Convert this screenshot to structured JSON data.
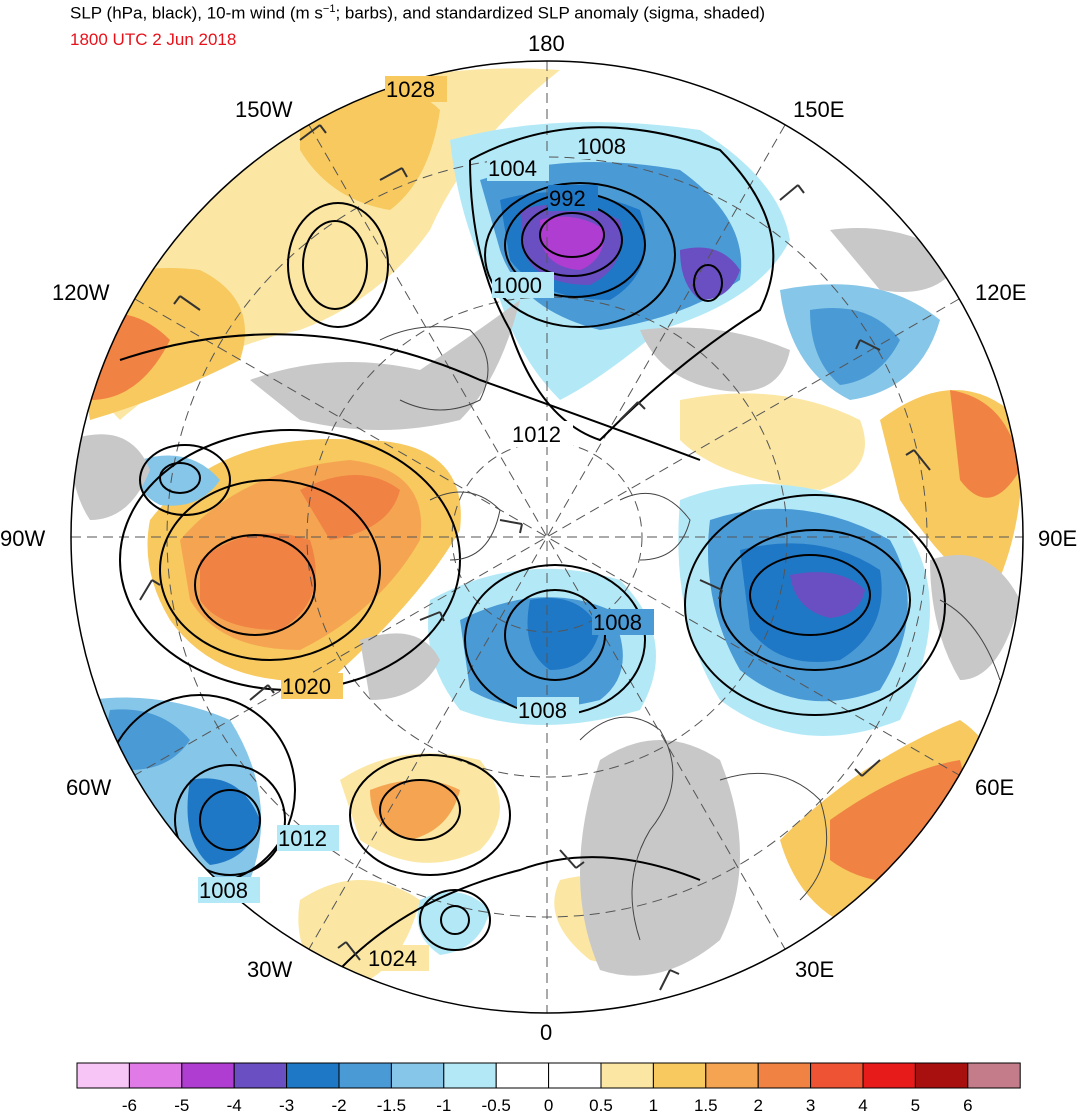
{
  "header": {
    "title_main": "SLP (hPa, black), 10-m wind (m s",
    "title_exp": "−1",
    "title_rest": "; barbs), and standardized SLP anomaly (sigma, shaded)",
    "valid_time": "1800 UTC 2 Jun 2018",
    "valid_time_color": "#e8111a"
  },
  "longitude_labels": [
    "180",
    "150E",
    "120E",
    "90E",
    "60E",
    "30E",
    "0",
    "30W",
    "60W",
    "90W",
    "120W",
    "150W"
  ],
  "contour_labels": [
    "1028",
    "1008",
    "1004",
    "992",
    "1000",
    "1012",
    "1008",
    "1008",
    "1020",
    "1012",
    "1008",
    "1024"
  ],
  "colorbar": {
    "colors": [
      "#f7c6f6",
      "#e07ae6",
      "#b03dd1",
      "#6a4fc2",
      "#1f78c5",
      "#4a9ad6",
      "#86c6e8",
      "#b3e9f7",
      "#ffffff",
      "#ffffff",
      "#fbe7a3",
      "#f7c95e",
      "#f5a552",
      "#f08244",
      "#ee5433",
      "#e81b1b",
      "#a81010",
      "#c47b8a"
    ],
    "tick_labels": [
      "-6",
      "-5",
      "-4",
      "-3",
      "-2",
      "-1.5",
      "-1",
      "-0.5",
      "0",
      "0.5",
      "1",
      "1.5",
      "2",
      "3",
      "4",
      "5",
      "6"
    ]
  },
  "colors": {
    "land_gray": "#c8c8c8",
    "contour": "#000000",
    "barb": "#333333"
  }
}
